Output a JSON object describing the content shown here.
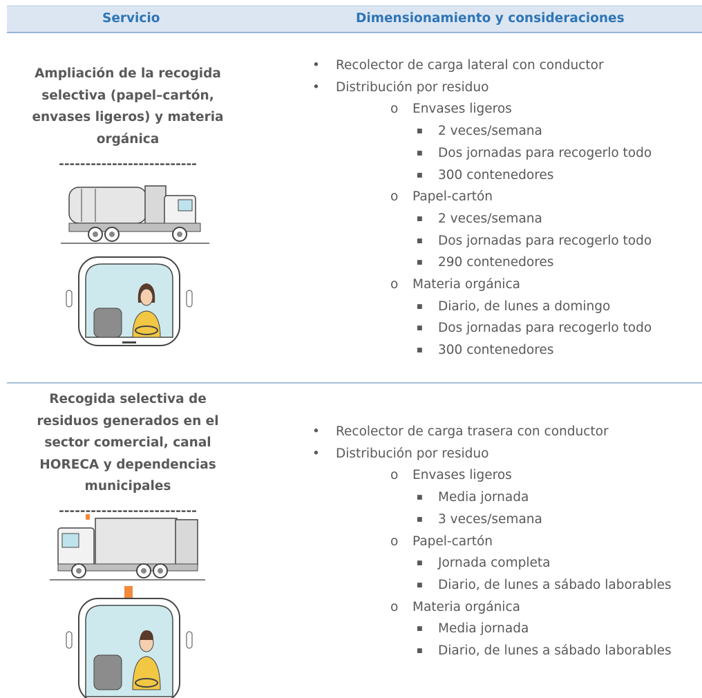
{
  "header": {
    "service": "Servicio",
    "details": "Dimensionamiento y consideraciones"
  },
  "rows": [
    {
      "service": [
        "Ampliación de la recogida",
        "selectiva (papel–cartón,",
        "envases ligeros) y materia",
        "orgánica"
      ],
      "divider": "--------------------------",
      "items": [
        {
          "text": "Recolector de carga lateral con conductor",
          "children": []
        },
        {
          "text": "Distribución por residuo",
          "children": [
            {
              "text": "Envases ligeros",
              "children": [
                "2 veces/semana",
                "Dos jornadas para recogerlo todo",
                "300 contenedores"
              ]
            },
            {
              "text": "Papel-cartón",
              "children": [
                "2 veces/semana",
                "Dos jornadas para recogerlo todo",
                "290 contenedores"
              ]
            },
            {
              "text": "Materia orgánica",
              "children": [
                "Diario, de lunes a domingo",
                "Dos jornadas para recogerlo todo",
                "300 contenedores"
              ]
            }
          ]
        }
      ]
    },
    {
      "service": [
        "Recogida selectiva de",
        "residuos generados en el",
        "sector comercial, canal",
        "HORECA y dependencias",
        "municipales"
      ],
      "divider": "--------------------------",
      "items": [
        {
          "text": "Recolector de carga trasera con conductor",
          "children": []
        },
        {
          "text": "Distribución por residuo",
          "children": [
            {
              "text": "Envases ligeros",
              "children": [
                "Media jornada",
                "3 veces/semana"
              ]
            },
            {
              "text": "Papel-cartón",
              "children": [
                "Jornada completa",
                "Diario, de lunes a sábado laborables"
              ]
            },
            {
              "text": "Materia orgánica",
              "children": [
                "Media jornada",
                "Diario, de lunes a sábado laborables"
              ]
            }
          ]
        }
      ]
    }
  ]
}
